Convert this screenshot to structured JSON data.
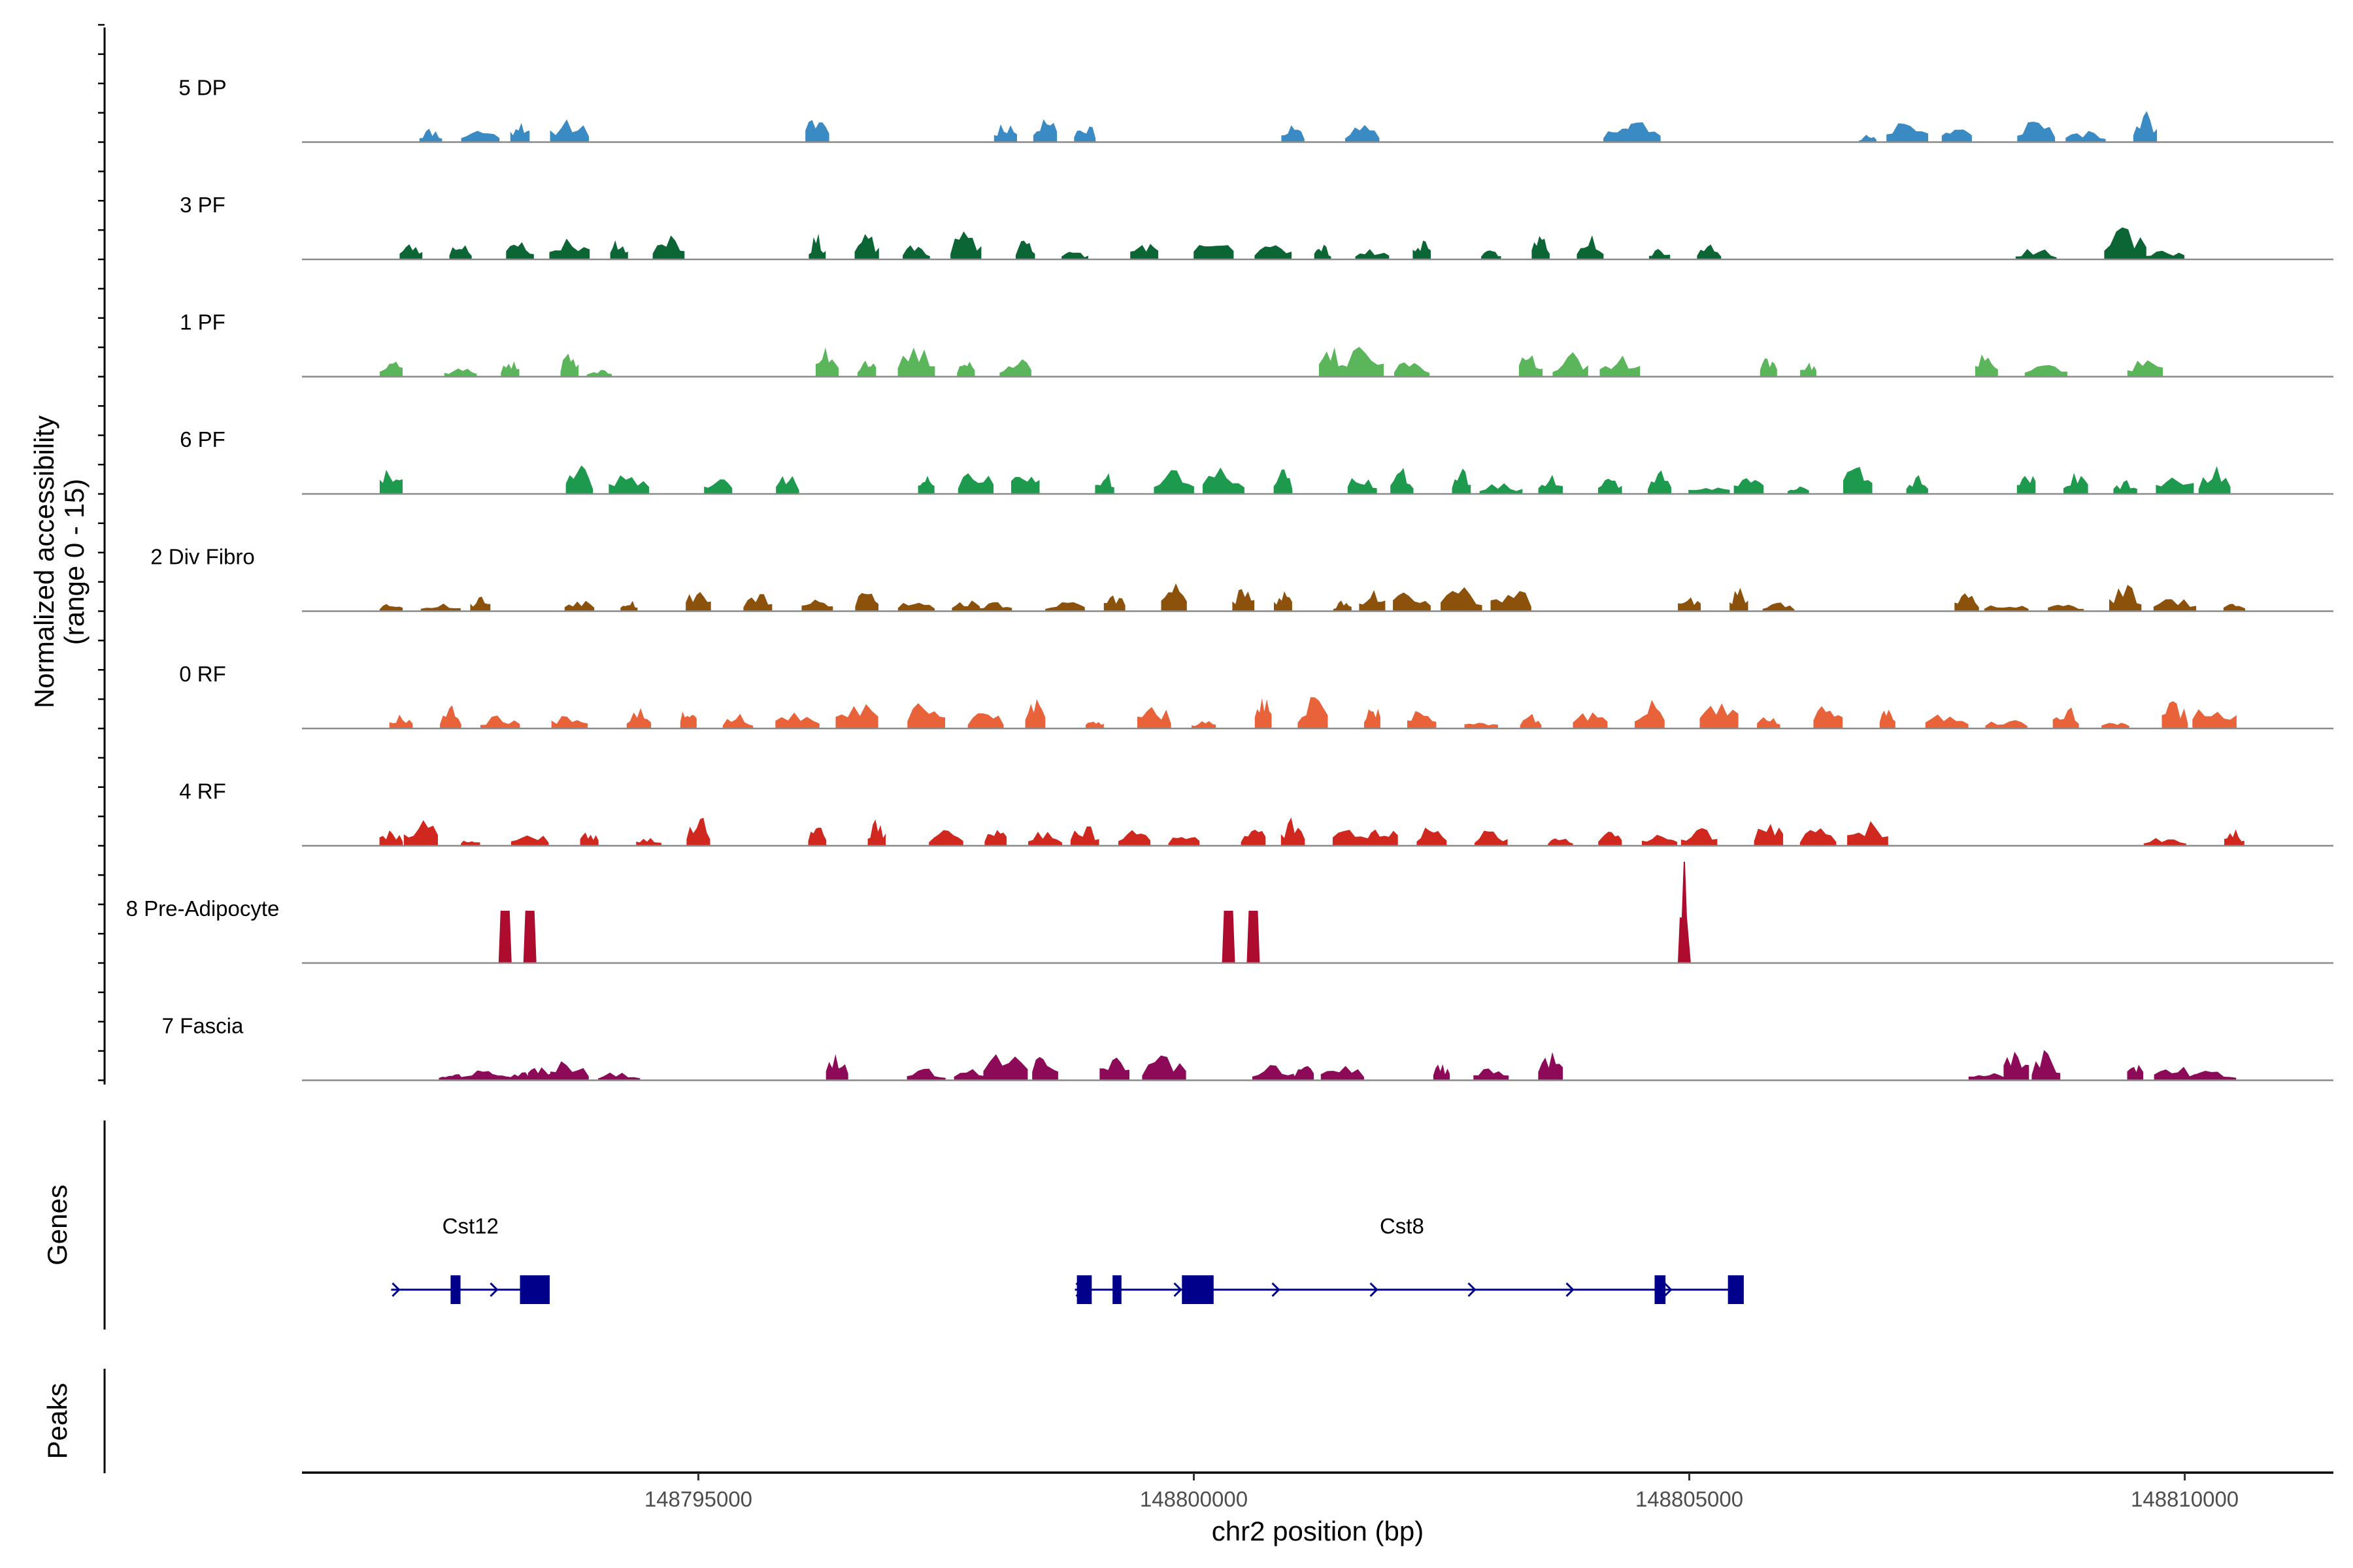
{
  "chart_data": {
    "type": "area",
    "title": "",
    "ylabel_line1": "Normalized accessibility",
    "ylabel_line2": "(range 0 - 15)",
    "xlabel": "chr2 position (bp)",
    "genes_label": "Genes",
    "peaks_label": "Peaks",
    "xlim": [
      148791000,
      148811500
    ],
    "ylim": [
      0,
      15
    ],
    "x_ticks": [
      148795000,
      148800000,
      148805000,
      148810000
    ],
    "x_tick_labels": [
      "148795000",
      "148800000",
      "148805000",
      "148810000"
    ],
    "tracks": [
      {
        "name": "5 DP",
        "color": "#3a8ac4",
        "seed": 11,
        "peaks": [
          148792300,
          148792800,
          148793200,
          148793700,
          148796200,
          148798100,
          148798500,
          148798900,
          148801000,
          148801700,
          148804300,
          148804500,
          148806800,
          148807200,
          148807700,
          148808500,
          148809000,
          148809600
        ]
      },
      {
        "name": "3 PF",
        "color": "#0b6535",
        "seed": 23,
        "peaks": [
          148792100,
          148792600,
          148793200,
          148793700,
          148794200,
          148794700,
          148796200,
          148796700,
          148797200,
          148797700,
          148798300,
          148798800,
          148799500,
          148800200,
          148800800,
          148801300,
          148801800,
          148802300,
          148803000,
          148803500,
          148804000,
          148804700,
          148805200,
          148808500,
          148809400,
          148809800
        ]
      },
      {
        "name": "1 PF",
        "color": "#5ab55b",
        "seed": 37,
        "peaks": [
          148791900,
          148792600,
          148793100,
          148793700,
          148794000,
          148796300,
          148796700,
          148797200,
          148797700,
          148798200,
          148801400,
          148801700,
          148802200,
          148803400,
          148803800,
          148804300,
          148805800,
          148806200,
          148808000,
          148808600,
          148809600
        ]
      },
      {
        "name": "6 PF",
        "color": "#1e9a4f",
        "seed": 41,
        "peaks": [
          148791900,
          148793800,
          148794300,
          148795200,
          148795900,
          148797300,
          148797800,
          148798300,
          148799100,
          148799800,
          148800300,
          148800900,
          148801700,
          148802100,
          148802700,
          148803100,
          148803600,
          148804200,
          148804700,
          148805200,
          148805600,
          148806100,
          148806700,
          148807300,
          148808400,
          148808900,
          148809400,
          148809900,
          148810300
        ]
      },
      {
        "name": "2 Div Fibro",
        "color": "#8c510a",
        "seed": 53,
        "peaks": [
          148791900,
          148792400,
          148792800,
          148793800,
          148794300,
          148795000,
          148795600,
          148796200,
          148796700,
          148797200,
          148797700,
          148798000,
          148798700,
          148799200,
          148799800,
          148800500,
          148800900,
          148801500,
          148801800,
          148802200,
          148802700,
          148803200,
          148805000,
          148805500,
          148805900,
          148807800,
          148808200,
          148808800,
          148809400,
          148809900,
          148810500
        ]
      },
      {
        "name": "0 RF",
        "color": "#e8623a",
        "seed": 67,
        "peaks": [
          148792000,
          148792500,
          148793000,
          148793700,
          148794400,
          148794900,
          148795400,
          148796000,
          148796600,
          148797300,
          148797900,
          148798400,
          148799000,
          148799600,
          148800100,
          148800700,
          148801200,
          148801800,
          148802300,
          148802900,
          148803400,
          148804000,
          148804600,
          148805300,
          148805800,
          148806400,
          148807000,
          148807600,
          148808200,
          148808800,
          148809300,
          148809900,
          148810300
        ]
      },
      {
        "name": "4 RF",
        "color": "#d0281e",
        "seed": 79,
        "peaks": [
          148791900,
          148792200,
          148792700,
          148793300,
          148793900,
          148794500,
          148795000,
          148796200,
          148796800,
          148797500,
          148798000,
          148798500,
          148798900,
          148799400,
          148799900,
          148800600,
          148801000,
          148801600,
          148801900,
          148802400,
          148803000,
          148803700,
          148804200,
          148804700,
          148805100,
          148805800,
          148806300,
          148806800,
          148809800,
          148810500
        ]
      },
      {
        "name": "8 Pre-Adipocyte",
        "color": "#ad0c2e",
        "seed": 83,
        "mode": "tall",
        "peaks": [
          148793050,
          148793300,
          148800350,
          148800600,
          148804950
        ]
      },
      {
        "name": "7 Fascia",
        "color": "#8c0a58",
        "seed": 97,
        "peaks": [
          148792500,
          148792800,
          148793000,
          148793200,
          148793400,
          148793700,
          148794200,
          148796400,
          148797300,
          148797800,
          148798100,
          148798500,
          148799200,
          148799700,
          148800800,
          148801100,
          148801500,
          148802500,
          148803000,
          148803600,
          148808000,
          148808300,
          148808600,
          148809500,
          148809900,
          148810300
        ]
      }
    ],
    "genes": [
      {
        "name": "Cst12",
        "start": 148791900,
        "end": 148793400,
        "strand": "+",
        "exons": [
          [
            148792500,
            148792600
          ],
          [
            148793200,
            148793500
          ]
        ],
        "label_x": 148792700
      },
      {
        "name": "Cst8",
        "start": 148798800,
        "end": 148805550,
        "strand": "+",
        "exons": [
          [
            148798820,
            148798970
          ],
          [
            148799180,
            148799270
          ],
          [
            148799880,
            148800200
          ],
          [
            148804650,
            148804760
          ],
          [
            148805390,
            148805550
          ]
        ],
        "label_x": 148802100
      }
    ]
  }
}
